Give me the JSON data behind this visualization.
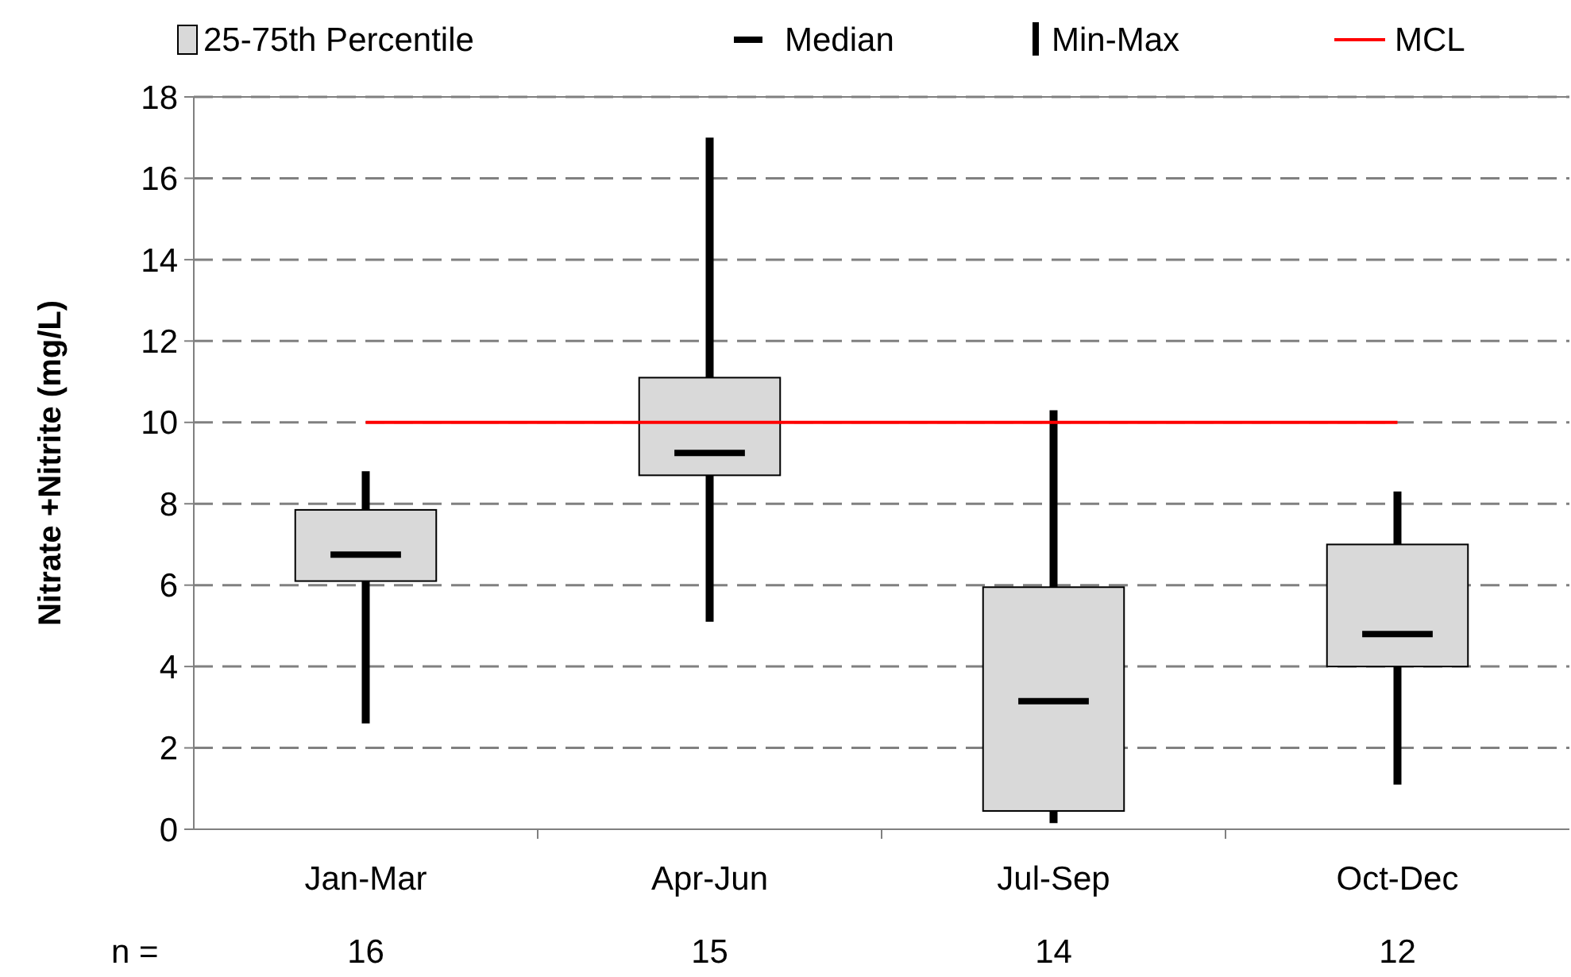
{
  "chart_data": {
    "type": "box",
    "ylabel": "Nitrate +Nitrite (mg/L)",
    "categories": [
      "Jan-Mar",
      "Apr-Jun",
      "Jul-Sep",
      "Oct-Dec"
    ],
    "series": [
      {
        "name": "25-75th Percentile",
        "color": "#d9d9d9",
        "boxes": [
          {
            "low": 2.6,
            "q1": 6.1,
            "median": 6.75,
            "q3": 7.85,
            "high": 8.8
          },
          {
            "low": 5.1,
            "q1": 8.7,
            "median": 9.25,
            "q3": 11.1,
            "high": 17
          },
          {
            "low": 0.15,
            "q1": 0.45,
            "median": 3.15,
            "q3": 5.95,
            "high": 10.3
          },
          {
            "low": 1.1,
            "q1": 4.0,
            "median": 4.8,
            "q3": 7.0,
            "high": 8.3
          }
        ]
      }
    ],
    "ref_lines": [
      {
        "axis": "y",
        "value": 10,
        "label": "MCL",
        "color": "#ff0000"
      }
    ],
    "annotations": [
      "Median",
      "Min-Max",
      "n =",
      "16",
      "15",
      "14",
      "12"
    ],
    "ylim": [
      0,
      18
    ],
    "yticks": [
      0,
      2,
      4,
      6,
      8,
      10,
      12,
      14,
      16,
      18
    ],
    "grid": "y",
    "legend": "top"
  }
}
